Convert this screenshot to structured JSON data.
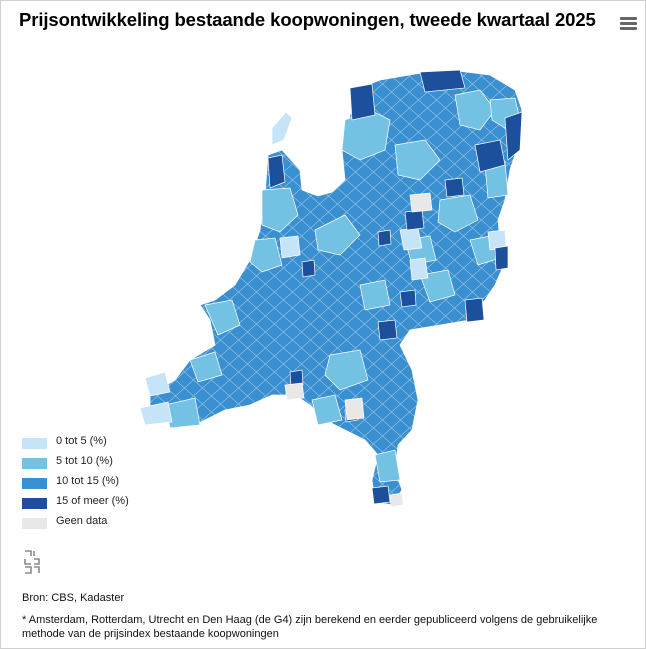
{
  "title": "Prijsontwikkeling bestaande koopwoningen, tweede kwartaal 2025",
  "menu_icon": "hamburger-menu-icon",
  "colors": {
    "class_0_5": "#c6e4f7",
    "class_5_10": "#73c2e3",
    "class_10_15": "#3a8fd0",
    "class_15_plus": "#1c4f9c",
    "no_data": "#e8e8e8",
    "border": "#ffffff"
  },
  "legend": {
    "items": [
      {
        "label": "0 tot 5 (%)",
        "color": "#c6e4f7"
      },
      {
        "label": "5 tot 10 (%)",
        "color": "#73c2e3"
      },
      {
        "label": "10 tot 15 (%)",
        "color": "#3a8fd0"
      },
      {
        "label": "15 of meer (%)",
        "color": "#1c4f9c"
      },
      {
        "label": "Geen data",
        "color": "#e8e8e8"
      }
    ]
  },
  "logo_icon": "cbs-logo-icon",
  "source": "Bron: CBS, Kadaster",
  "note": "* Amsterdam, Rotterdam, Utrecht en Den Haag (de G4) zijn berekend en eerder gepubliceerd volgens de gebruikelijke methode van de prijsindex bestaande koopwoningen"
}
